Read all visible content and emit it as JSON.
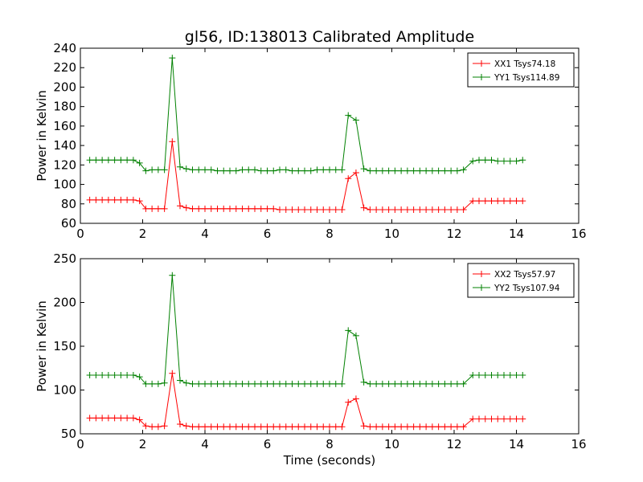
{
  "chart_data": [
    {
      "type": "line",
      "title": "gl56, ID:138013 Calibrated Amplitude",
      "xlabel": "",
      "ylabel": "Power in Kelvin",
      "xlim": [
        0,
        16
      ],
      "ylim": [
        60,
        240
      ],
      "xticks": [
        0,
        2,
        4,
        6,
        8,
        10,
        12,
        14,
        16
      ],
      "yticks": [
        60,
        80,
        100,
        120,
        140,
        160,
        180,
        200,
        220,
        240
      ],
      "legend_position": "top-right",
      "grid": false,
      "x": [
        0.3,
        0.5,
        0.7,
        0.9,
        1.1,
        1.3,
        1.5,
        1.7,
        1.9,
        2.1,
        2.3,
        2.5,
        2.7,
        2.95,
        3.2,
        3.4,
        3.6,
        3.8,
        4.0,
        4.2,
        4.4,
        4.6,
        4.8,
        5.0,
        5.2,
        5.4,
        5.6,
        5.8,
        6.0,
        6.2,
        6.4,
        6.6,
        6.8,
        7.0,
        7.2,
        7.4,
        7.6,
        7.8,
        8.0,
        8.2,
        8.4,
        8.6,
        8.85,
        9.1,
        9.3,
        9.5,
        9.7,
        9.9,
        10.1,
        10.3,
        10.5,
        10.7,
        10.9,
        11.1,
        11.3,
        11.5,
        11.7,
        11.9,
        12.1,
        12.3,
        12.6,
        12.8,
        13.0,
        13.2,
        13.4,
        13.6,
        13.8,
        14.0,
        14.2
      ],
      "series": [
        {
          "name": "XX1 Tsys74.18",
          "color": "#ff0000",
          "values": [
            84,
            84,
            84,
            84,
            84,
            84,
            84,
            84,
            83,
            75,
            75,
            75,
            75,
            144,
            78,
            76,
            75,
            75,
            75,
            75,
            75,
            75,
            75,
            75,
            75,
            75,
            75,
            75,
            75,
            75,
            74,
            74,
            74,
            74,
            74,
            74,
            74,
            74,
            74,
            74,
            74,
            106,
            112,
            76,
            74,
            74,
            74,
            74,
            74,
            74,
            74,
            74,
            74,
            74,
            74,
            74,
            74,
            74,
            74,
            74,
            83,
            83,
            83,
            83,
            83,
            83,
            83,
            83,
            83
          ]
        },
        {
          "name": "YY1 Tsys114.89",
          "color": "#008000",
          "values": [
            125,
            125,
            125,
            125,
            125,
            125,
            125,
            125,
            122,
            114,
            115,
            115,
            115,
            230,
            118,
            116,
            115,
            115,
            115,
            115,
            114,
            114,
            114,
            114,
            115,
            115,
            115,
            114,
            114,
            114,
            115,
            115,
            114,
            114,
            114,
            114,
            115,
            115,
            115,
            115,
            115,
            171,
            166,
            116,
            114,
            114,
            114,
            114,
            114,
            114,
            114,
            114,
            114,
            114,
            114,
            114,
            114,
            114,
            114,
            115,
            124,
            125,
            125,
            125,
            124,
            124,
            124,
            124,
            125
          ]
        }
      ]
    },
    {
      "type": "line",
      "title": "",
      "xlabel": "Time (seconds)",
      "ylabel": "Power in Kelvin",
      "xlim": [
        0,
        16
      ],
      "ylim": [
        50,
        250
      ],
      "xticks": [
        0,
        2,
        4,
        6,
        8,
        10,
        12,
        14,
        16
      ],
      "yticks": [
        50,
        100,
        150,
        200,
        250
      ],
      "legend_position": "top-right",
      "grid": false,
      "x": [
        0.3,
        0.5,
        0.7,
        0.9,
        1.1,
        1.3,
        1.5,
        1.7,
        1.9,
        2.1,
        2.3,
        2.5,
        2.7,
        2.95,
        3.2,
        3.4,
        3.6,
        3.8,
        4.0,
        4.2,
        4.4,
        4.6,
        4.8,
        5.0,
        5.2,
        5.4,
        5.6,
        5.8,
        6.0,
        6.2,
        6.4,
        6.6,
        6.8,
        7.0,
        7.2,
        7.4,
        7.6,
        7.8,
        8.0,
        8.2,
        8.4,
        8.6,
        8.85,
        9.1,
        9.3,
        9.5,
        9.7,
        9.9,
        10.1,
        10.3,
        10.5,
        10.7,
        10.9,
        11.1,
        11.3,
        11.5,
        11.7,
        11.9,
        12.1,
        12.3,
        12.6,
        12.8,
        13.0,
        13.2,
        13.4,
        13.6,
        13.8,
        14.0,
        14.2
      ],
      "series": [
        {
          "name": "XX2 Tsys57.97",
          "color": "#ff0000",
          "values": [
            68,
            68,
            68,
            68,
            68,
            68,
            68,
            68,
            66,
            59,
            58,
            58,
            59,
            119,
            61,
            59,
            58,
            58,
            58,
            58,
            58,
            58,
            58,
            58,
            58,
            58,
            58,
            58,
            58,
            58,
            58,
            58,
            58,
            58,
            58,
            58,
            58,
            58,
            58,
            58,
            58,
            86,
            90,
            59,
            58,
            58,
            58,
            58,
            58,
            58,
            58,
            58,
            58,
            58,
            58,
            58,
            58,
            58,
            58,
            58,
            67,
            67,
            67,
            67,
            67,
            67,
            67,
            67,
            67
          ]
        },
        {
          "name": "YY2 Tsys107.94",
          "color": "#008000",
          "values": [
            117,
            117,
            117,
            117,
            117,
            117,
            117,
            117,
            115,
            107,
            107,
            107,
            108,
            231,
            111,
            108,
            107,
            107,
            107,
            107,
            107,
            107,
            107,
            107,
            107,
            107,
            107,
            107,
            107,
            107,
            107,
            107,
            107,
            107,
            107,
            107,
            107,
            107,
            107,
            107,
            107,
            168,
            162,
            109,
            107,
            107,
            107,
            107,
            107,
            107,
            107,
            107,
            107,
            107,
            107,
            107,
            107,
            107,
            107,
            107,
            117,
            117,
            117,
            117,
            117,
            117,
            117,
            117,
            117
          ]
        }
      ]
    }
  ]
}
